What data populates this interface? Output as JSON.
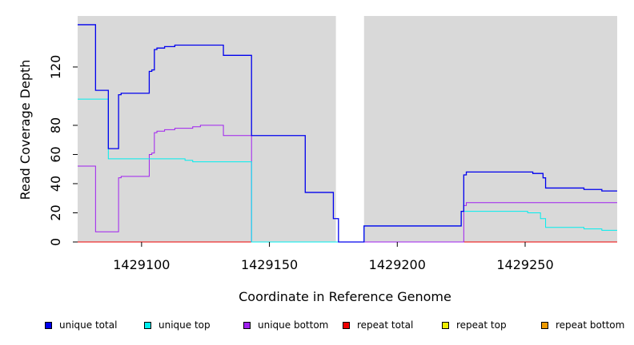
{
  "chart_data": {
    "type": "line",
    "title": "",
    "xlabel": "Coordinate in Reference Genome",
    "ylabel": "Read Coverage Depth",
    "xlim": [
      1429075,
      1429286
    ],
    "ylim": [
      0,
      155
    ],
    "xticks": [
      1429100,
      1429150,
      1429200,
      1429250
    ],
    "yticks": [
      0,
      20,
      40,
      60,
      80,
      120
    ],
    "gap": [
      1429176,
      1429187
    ],
    "background": "#d9d9d9",
    "grid": false,
    "legend_position": "bottom",
    "series": [
      {
        "name": "unique total",
        "color": "#0000ee",
        "points": [
          [
            1429075,
            149
          ],
          [
            1429082,
            149
          ],
          [
            1429082,
            104
          ],
          [
            1429087,
            104
          ],
          [
            1429087,
            64
          ],
          [
            1429091,
            64
          ],
          [
            1429091,
            101
          ],
          [
            1429092,
            101
          ],
          [
            1429092,
            102
          ],
          [
            1429103,
            102
          ],
          [
            1429103,
            117
          ],
          [
            1429104,
            117
          ],
          [
            1429104,
            118
          ],
          [
            1429105,
            118
          ],
          [
            1429105,
            132
          ],
          [
            1429106,
            132
          ],
          [
            1429106,
            133
          ],
          [
            1429109,
            133
          ],
          [
            1429109,
            134
          ],
          [
            1429113,
            134
          ],
          [
            1429113,
            135
          ],
          [
            1429132,
            135
          ],
          [
            1429132,
            128
          ],
          [
            1429143,
            128
          ],
          [
            1429143,
            73
          ],
          [
            1429164,
            73
          ],
          [
            1429164,
            34
          ],
          [
            1429175,
            34
          ],
          [
            1429175,
            16
          ],
          [
            1429177,
            16
          ],
          [
            1429177,
            0
          ],
          [
            1429187,
            0
          ],
          [
            1429187,
            11
          ],
          [
            1429225,
            11
          ],
          [
            1429225,
            21
          ],
          [
            1429226,
            21
          ],
          [
            1429226,
            46
          ],
          [
            1429227,
            46
          ],
          [
            1429227,
            48
          ],
          [
            1429253,
            48
          ],
          [
            1429253,
            47
          ],
          [
            1429257,
            47
          ],
          [
            1429257,
            44
          ],
          [
            1429258,
            44
          ],
          [
            1429258,
            37
          ],
          [
            1429273,
            37
          ],
          [
            1429273,
            36
          ],
          [
            1429280,
            36
          ],
          [
            1429280,
            35
          ],
          [
            1429286,
            35
          ]
        ]
      },
      {
        "name": "unique top",
        "color": "#00eeee",
        "points": [
          [
            1429075,
            98
          ],
          [
            1429087,
            98
          ],
          [
            1429087,
            57
          ],
          [
            1429117,
            57
          ],
          [
            1429117,
            56
          ],
          [
            1429120,
            56
          ],
          [
            1429120,
            55
          ],
          [
            1429143,
            55
          ],
          [
            1429143,
            0
          ],
          [
            1429177,
            0
          ],
          [
            1429187,
            0
          ],
          [
            1429187,
            11
          ],
          [
            1429225,
            11
          ],
          [
            1429225,
            21
          ],
          [
            1429251,
            21
          ],
          [
            1429251,
            20
          ],
          [
            1429256,
            20
          ],
          [
            1429256,
            16
          ],
          [
            1429258,
            16
          ],
          [
            1429258,
            10
          ],
          [
            1429273,
            10
          ],
          [
            1429273,
            9
          ],
          [
            1429280,
            9
          ],
          [
            1429280,
            8
          ],
          [
            1429286,
            8
          ]
        ]
      },
      {
        "name": "unique bottom",
        "color": "#a020f0",
        "points": [
          [
            1429075,
            52
          ],
          [
            1429082,
            52
          ],
          [
            1429082,
            7
          ],
          [
            1429091,
            7
          ],
          [
            1429091,
            44
          ],
          [
            1429092,
            44
          ],
          [
            1429092,
            45
          ],
          [
            1429103,
            45
          ],
          [
            1429103,
            60
          ],
          [
            1429104,
            60
          ],
          [
            1429104,
            61
          ],
          [
            1429105,
            61
          ],
          [
            1429105,
            75
          ],
          [
            1429106,
            75
          ],
          [
            1429106,
            76
          ],
          [
            1429109,
            76
          ],
          [
            1429109,
            77
          ],
          [
            1429113,
            77
          ],
          [
            1429113,
            78
          ],
          [
            1429120,
            78
          ],
          [
            1429120,
            79
          ],
          [
            1429123,
            79
          ],
          [
            1429123,
            80
          ],
          [
            1429132,
            80
          ],
          [
            1429132,
            73
          ],
          [
            1429143,
            73
          ],
          [
            1429143,
            0
          ],
          [
            1429176,
            0
          ],
          [
            1429187,
            0
          ],
          [
            1429226,
            0
          ],
          [
            1429226,
            25
          ],
          [
            1429227,
            25
          ],
          [
            1429227,
            27
          ],
          [
            1429286,
            27
          ]
        ]
      },
      {
        "name": "repeat total",
        "color": "#ee0000",
        "points": [
          [
            1429075,
            0
          ],
          [
            1429286,
            0
          ]
        ]
      },
      {
        "name": "repeat top",
        "color": "#eeee00",
        "points": [
          [
            1429075,
            0
          ],
          [
            1429286,
            0
          ]
        ]
      },
      {
        "name": "repeat bottom",
        "color": "#ee9a00",
        "points": [
          [
            1429075,
            0
          ],
          [
            1429286,
            0
          ]
        ]
      }
    ]
  }
}
